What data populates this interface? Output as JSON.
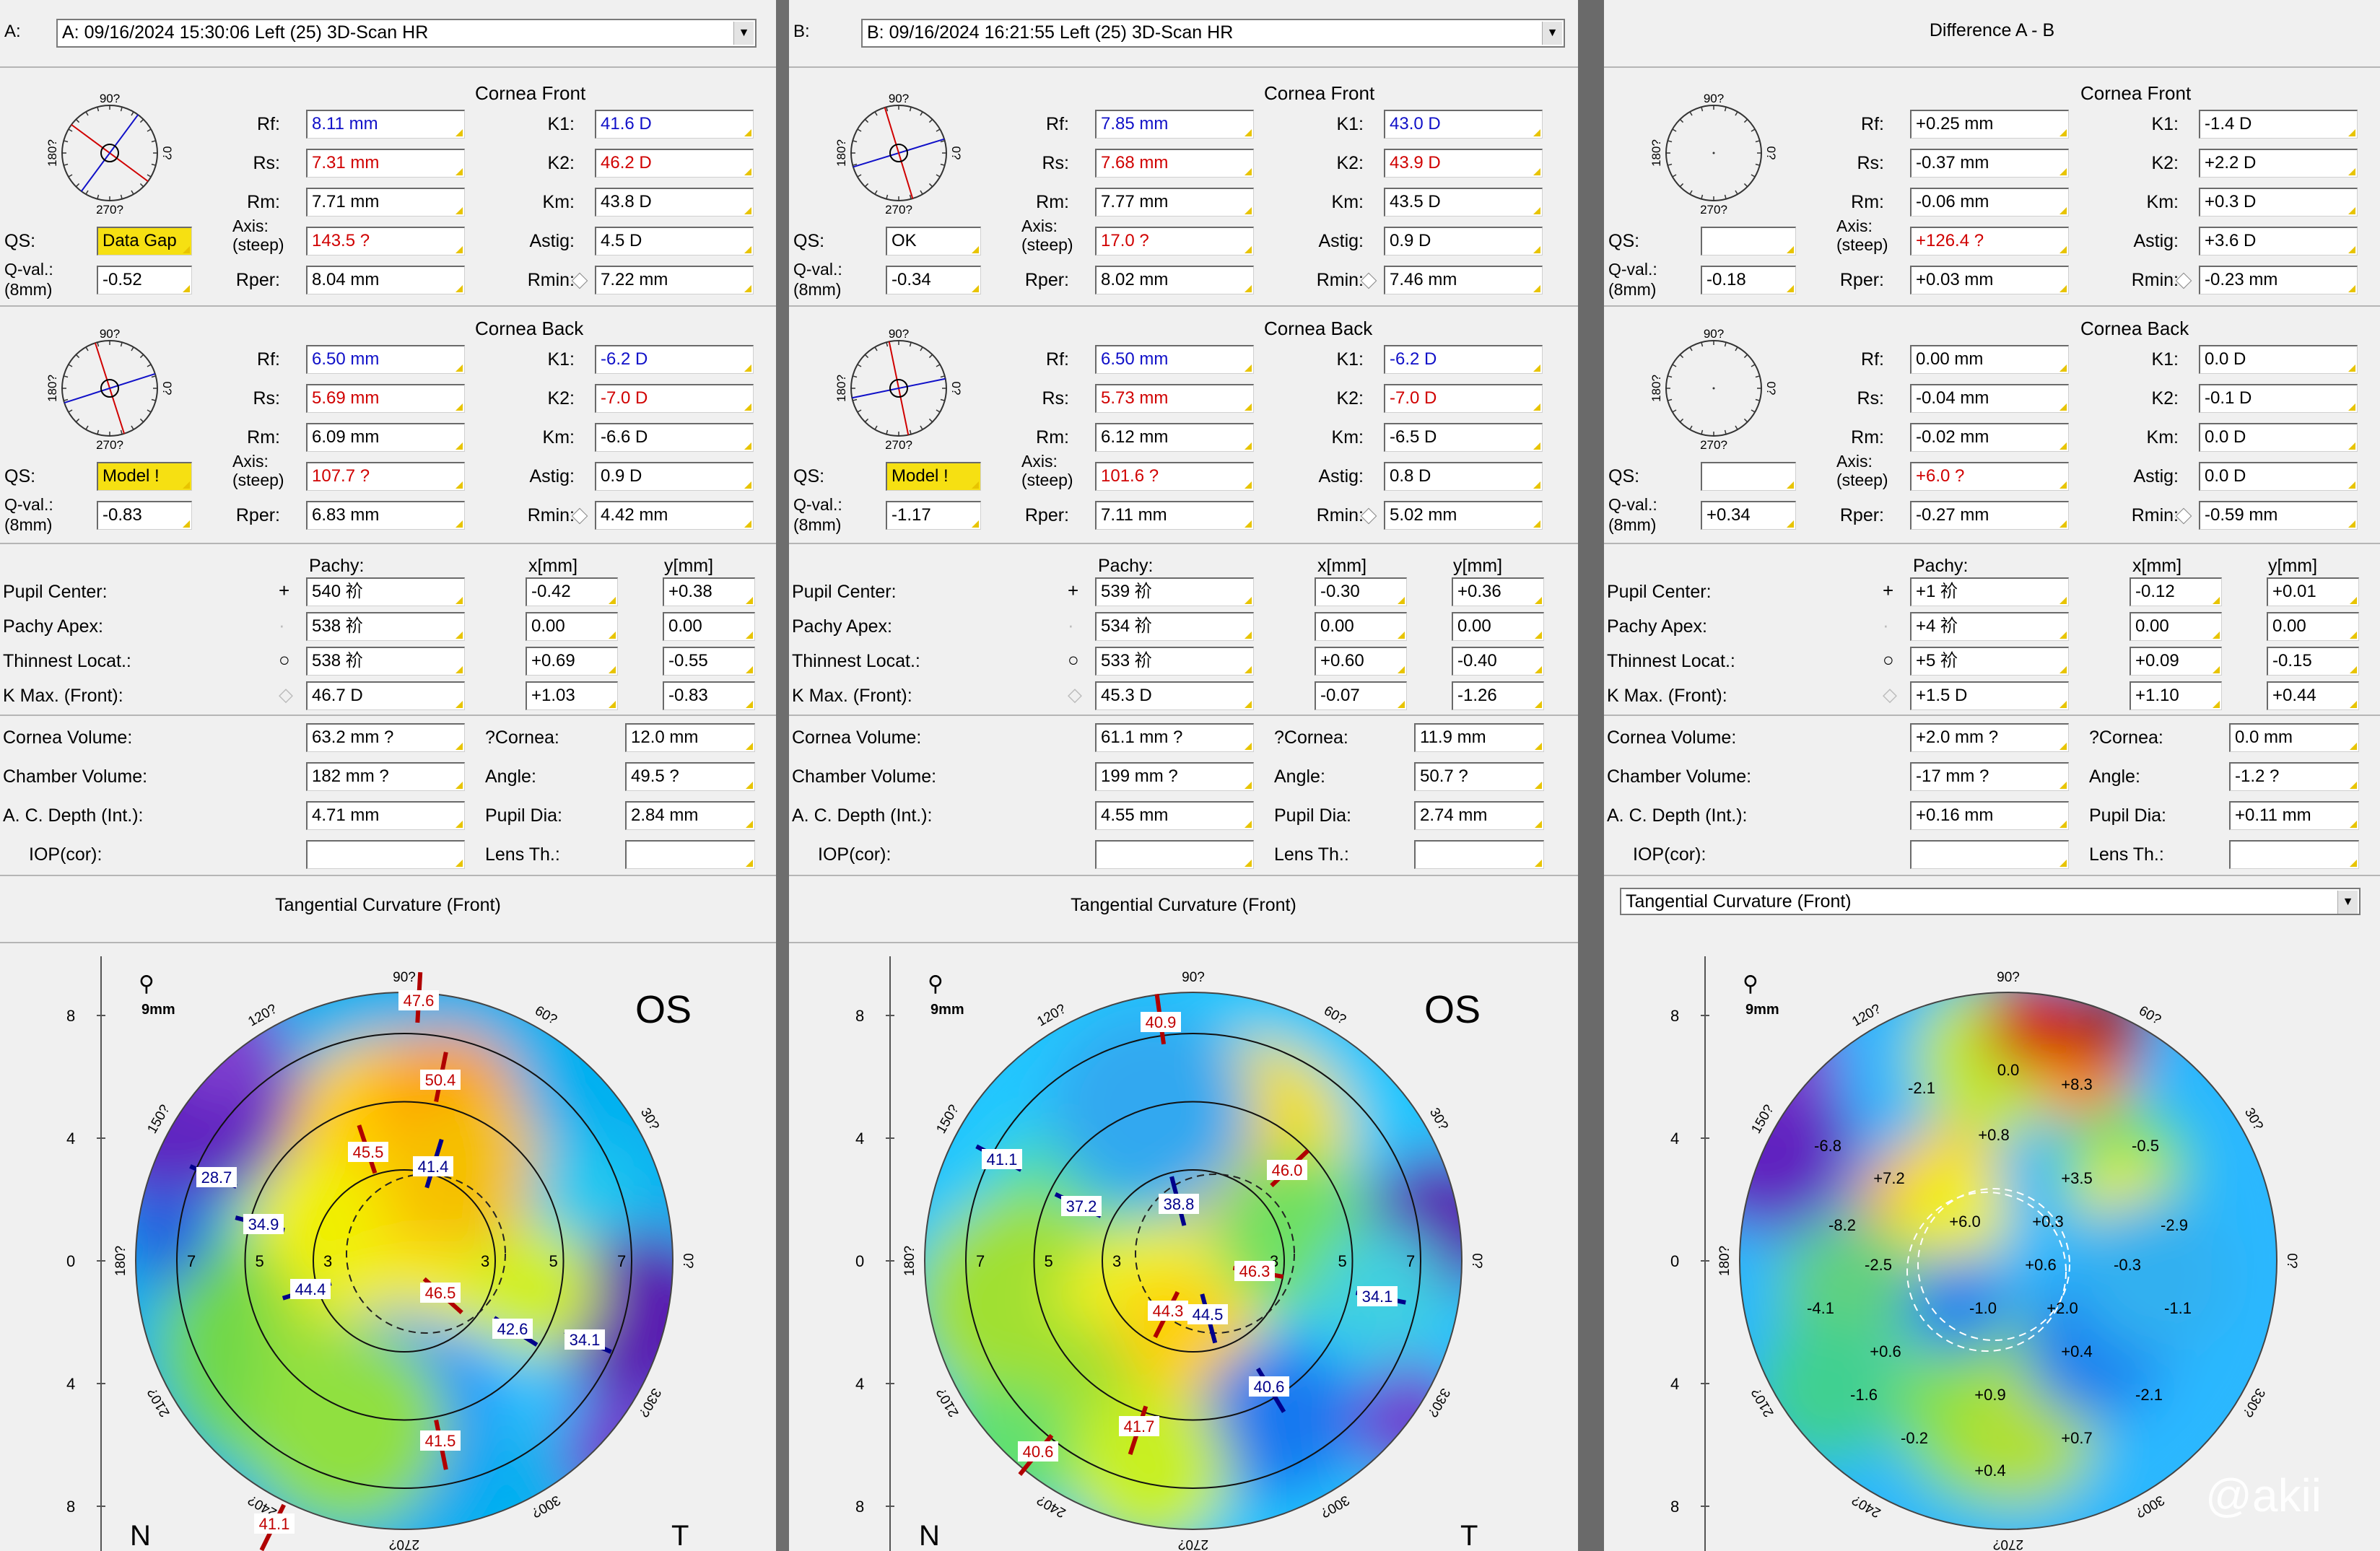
{
  "panels": [
    {
      "letter": "A:",
      "header": "A: 09/16/2024  15:30:06  Left    (25) 3D-Scan HR",
      "front": {
        "title": "Cornea Front",
        "rf": "8.11 mm",
        "rs": "7.31 mm",
        "rm": "7.71 mm",
        "axis": "143.5 ?",
        "rper": "8.04 mm",
        "k1": "41.6 D",
        "k2": "46.2 D",
        "km": "43.8 D",
        "astig": "4.5 D",
        "rmin": "7.22 mm",
        "qs": "Data Gap",
        "qval": "-0.52"
      },
      "back": {
        "title": "Cornea Back",
        "rf": "6.50 mm",
        "rs": "5.69 mm",
        "rm": "6.09 mm",
        "axis": "107.7 ?",
        "rper": "6.83 mm",
        "k1": "-6.2 D",
        "k2": "-7.0 D",
        "km": "-6.6 D",
        "astig": "0.9 D",
        "rmin": "4.42 mm",
        "qs": "Model !",
        "qval": "-0.83"
      },
      "pachy": {
        "pupil": [
          "540 祄",
          "-0.42",
          "+0.38"
        ],
        "apex": [
          "538 祄",
          "0.00",
          "0.00"
        ],
        "thin": [
          "538 祄",
          "+0.69",
          "-0.55"
        ],
        "kmax": [
          "46.7 D",
          "+1.03",
          "-0.83"
        ]
      },
      "vol": {
        "cv": "63.2 mm ?",
        "chv": "182 mm ?",
        "acd": "4.71 mm",
        "iop": "",
        "cornea": "12.0 mm",
        "angle": "49.5 ?",
        "pupil": "2.84 mm",
        "lens": ""
      },
      "map_title": "Tangential Curvature (Front)",
      "eye": "OS"
    },
    {
      "letter": "B:",
      "header": "B: 09/16/2024  16:21:55  Left    (25) 3D-Scan HR",
      "front": {
        "title": "Cornea Front",
        "rf": "7.85 mm",
        "rs": "7.68 mm",
        "rm": "7.77 mm",
        "axis": "17.0 ?",
        "rper": "8.02 mm",
        "k1": "43.0 D",
        "k2": "43.9 D",
        "km": "43.5 D",
        "astig": "0.9 D",
        "rmin": "7.46 mm",
        "qs": "OK",
        "qval": "-0.34"
      },
      "back": {
        "title": "Cornea Back",
        "rf": "6.50 mm",
        "rs": "5.73 mm",
        "rm": "6.12 mm",
        "axis": "101.6 ?",
        "rper": "7.11 mm",
        "k1": "-6.2 D",
        "k2": "-7.0 D",
        "km": "-6.5 D",
        "astig": "0.8 D",
        "rmin": "5.02 mm",
        "qs": "Model !",
        "qval": "-1.17"
      },
      "pachy": {
        "pupil": [
          "539 祄",
          "-0.30",
          "+0.36"
        ],
        "apex": [
          "534 祄",
          "0.00",
          "0.00"
        ],
        "thin": [
          "533 祄",
          "+0.60",
          "-0.40"
        ],
        "kmax": [
          "45.3 D",
          "-0.07",
          "-1.26"
        ]
      },
      "vol": {
        "cv": "61.1 mm ?",
        "chv": "199 mm ?",
        "acd": "4.55 mm",
        "iop": "",
        "cornea": "11.9 mm",
        "angle": "50.7 ?",
        "pupil": "2.74 mm",
        "lens": ""
      },
      "map_title": "Tangential Curvature (Front)",
      "eye": "OS"
    },
    {
      "letter": "",
      "header": "Difference A - B",
      "front": {
        "title": "Cornea Front",
        "rf": "+0.25 mm",
        "rs": "-0.37 mm",
        "rm": "-0.06 mm",
        "axis": "+126.4 ?",
        "rper": "+0.03 mm",
        "k1": "-1.4 D",
        "k2": "+2.2 D",
        "km": "+0.3 D",
        "astig": "+3.6 D",
        "rmin": "-0.23 mm",
        "qs": "",
        "qval": "-0.18"
      },
      "back": {
        "title": "Cornea Back",
        "rf": "0.00 mm",
        "rs": "-0.04 mm",
        "rm": "-0.02 mm",
        "axis": "+6.0 ?",
        "rper": "-0.27 mm",
        "k1": "0.0 D",
        "k2": "-0.1 D",
        "km": "0.0 D",
        "astig": "0.0 D",
        "rmin": "-0.59 mm",
        "qs": "",
        "qval": "+0.34"
      },
      "pachy": {
        "pupil": [
          "+1 祄",
          "-0.12",
          "+0.01"
        ],
        "apex": [
          "+4 祄",
          "0.00",
          "0.00"
        ],
        "thin": [
          "+5 祄",
          "+0.09",
          "-0.15"
        ],
        "kmax": [
          "+1.5 D",
          "+1.10",
          "+0.44"
        ]
      },
      "vol": {
        "cv": "+2.0 mm ?",
        "chv": "-17 mm ?",
        "acd": "+0.16 mm",
        "iop": "",
        "cornea": "0.0 mm",
        "angle": "-1.2 ?",
        "pupil": "+0.11 mm",
        "lens": ""
      },
      "map_title": "Tangential Curvature (Front)",
      "eye": ""
    }
  ],
  "labels": {
    "rf": "Rf:",
    "rs": "Rs:",
    "rm": "Rm:",
    "axis1": "Axis:",
    "axis2": "(steep)",
    "rper": "Rper:",
    "k1": "K1:",
    "k2": "K2:",
    "km": "Km:",
    "astig": "Astig:",
    "rmin": "Rmin:",
    "qs": "QS:",
    "qval1": "Q-val.:",
    "qval2": "(8mm)",
    "pachy": "Pachy:",
    "x": "x[mm]",
    "y": "y[mm]",
    "pupil": "Pupil Center:",
    "apex": "Pachy Apex:",
    "thin": "Thinnest Locat.:",
    "kmax": "K Max. (Front):",
    "cv": "Cornea Volume:",
    "chv": "Chamber Volume:",
    "acd": "A. C. Depth (Int.):",
    "iop": "IOP(cor):",
    "cornea": "?Cornea:",
    "angle": "Angle:",
    "pupildia": "Pupil Dia:",
    "lens": "Lens Th.:",
    "deg90": "90?",
    "deg270": "270?",
    "deg0": "0?",
    "deg180": "180?"
  },
  "maps": {
    "scale": "9mm",
    "ticks": [
      "8",
      "4",
      "0",
      "4",
      "8"
    ],
    "rings": [
      "3",
      "5",
      "7"
    ],
    "angles": [
      "90?",
      "60?",
      "30?",
      "0?",
      "330?",
      "300?",
      "270?",
      "240?",
      "210?",
      "180?",
      "150?",
      "120?"
    ],
    "nasal": "N",
    "temporal": "T",
    "a_labels": [
      "47.6",
      "50.4",
      "45.5",
      "41.4",
      "28.7",
      "34.9",
      "44.4",
      "46.5",
      "42.6",
      "34.1",
      "41.5",
      "41.1"
    ],
    "b_labels": [
      "40.9",
      "41.1",
      "37.2",
      "38.8",
      "46.0",
      "46.3",
      "44.3",
      "44.5",
      "34.1",
      "40.6",
      "41.7",
      "40.6"
    ],
    "d_labels": [
      "-2.1",
      "0.0",
      "+8.3",
      "-6.8",
      "+0.8",
      "-0.5",
      "+7.2",
      "+3.5",
      "-8.2",
      "+6.0",
      "+0.3",
      "-2.9",
      "-2.5",
      "+0.6",
      "-0.3",
      "-4.1",
      "-1.0",
      "+2.0",
      "-1.1",
      "+0.6",
      "+0.4",
      "-1.6",
      "+0.9",
      "-2.1",
      "-0.2",
      "+0.7",
      "+0.4"
    ]
  },
  "watermark": "@akii"
}
